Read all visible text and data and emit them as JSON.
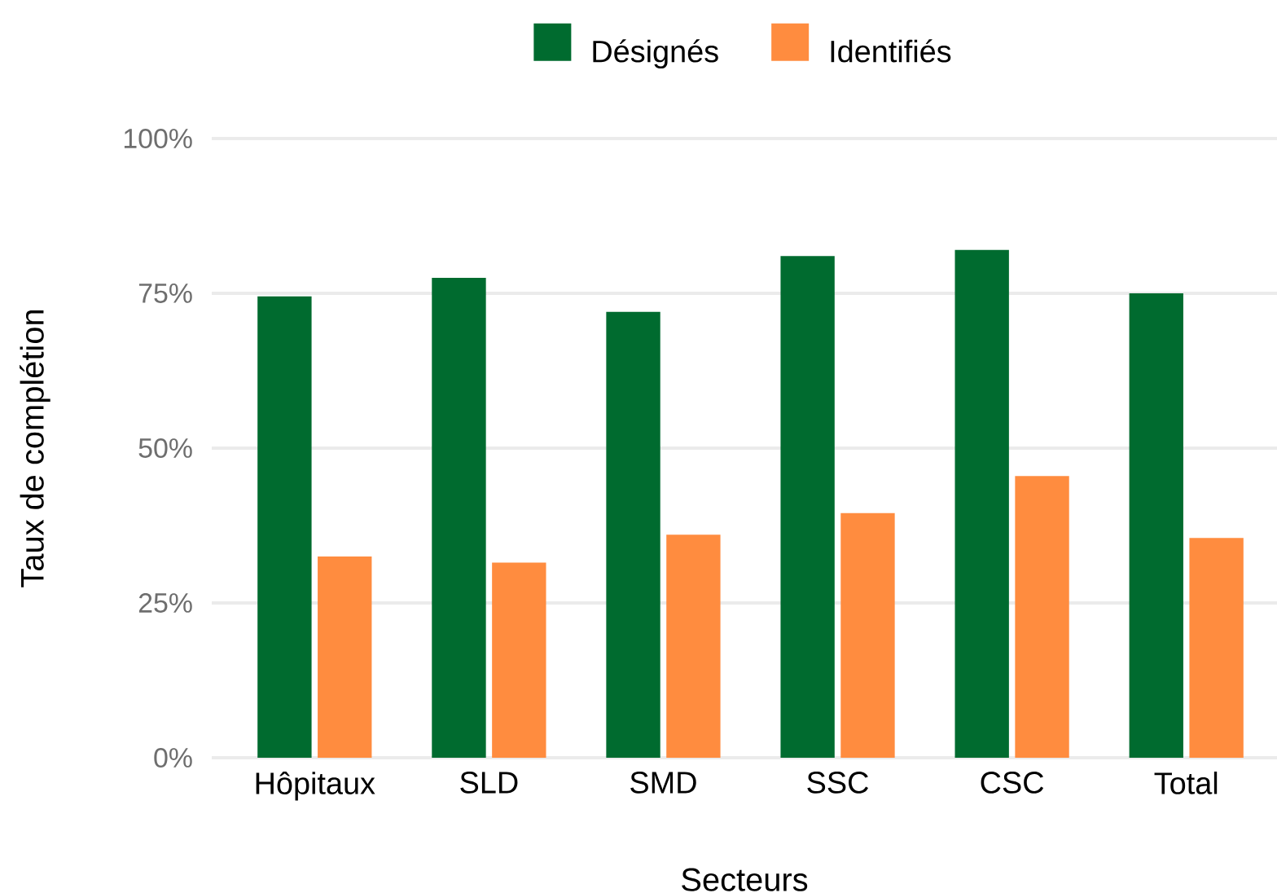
{
  "chart_data": {
    "type": "bar",
    "xlabel": "Secteurs",
    "ylabel": "Taux de complétion",
    "categories": [
      "Hôpitaux",
      "SLD",
      "SMD",
      "SSC",
      "CSC",
      "Total"
    ],
    "series": [
      {
        "name": "Désignés",
        "color": "#006b2f",
        "values": [
          74.5,
          77.5,
          72,
          81,
          82,
          75
        ]
      },
      {
        "name": "Identifiés",
        "color": "#ff8c3f",
        "values": [
          32.5,
          31.5,
          36,
          39.5,
          45.5,
          35.5
        ]
      }
    ],
    "ylim": [
      0,
      100
    ],
    "yticks": [
      {
        "value": 0,
        "label": "0%"
      },
      {
        "value": 25,
        "label": "25%"
      },
      {
        "value": 50,
        "label": "50%"
      },
      {
        "value": 75,
        "label": "75%"
      },
      {
        "value": 100,
        "label": "100%"
      }
    ],
    "grid": "y",
    "legend": "top"
  }
}
